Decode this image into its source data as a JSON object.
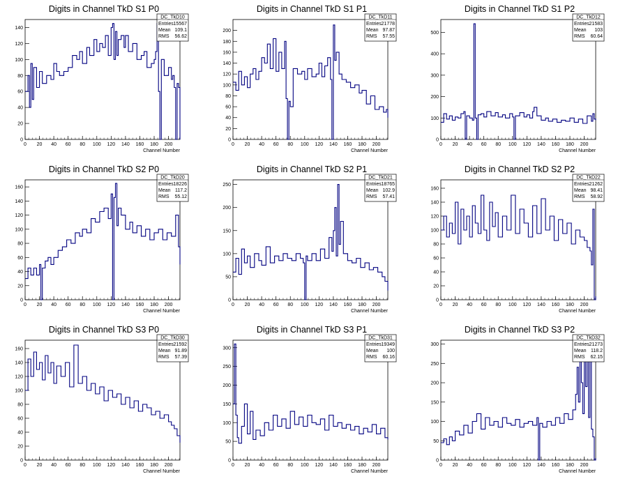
{
  "chart_data": [
    {
      "type": "line",
      "title": "Digits in Channel TkD S1 P0",
      "xlabel": "Channel Number",
      "ylabel": "",
      "xlim": [
        0,
        216
      ],
      "ylim": [
        0,
        150
      ],
      "xticks": [
        0,
        20,
        40,
        60,
        80,
        100,
        120,
        140,
        160,
        180,
        200
      ],
      "yticks": [
        0,
        20,
        40,
        60,
        80,
        100,
        120,
        140
      ],
      "stats": {
        "name": "DC_TkD10",
        "entries": "15567",
        "mean": "109.1",
        "rms": "56.62"
      },
      "x": [
        0,
        4,
        6,
        8,
        10,
        12,
        16,
        20,
        24,
        30,
        36,
        40,
        44,
        48,
        54,
        60,
        66,
        72,
        76,
        80,
        86,
        90,
        96,
        100,
        104,
        108,
        112,
        116,
        120,
        122,
        124,
        126,
        128,
        130,
        134,
        138,
        140,
        144,
        150,
        156,
        162,
        166,
        170,
        176,
        180,
        182,
        184,
        186,
        188,
        190,
        194,
        200,
        204,
        206,
        208,
        210,
        212,
        214,
        216
      ],
      "y": [
        60,
        80,
        40,
        95,
        50,
        90,
        65,
        85,
        70,
        80,
        75,
        95,
        85,
        80,
        85,
        90,
        105,
        100,
        110,
        95,
        115,
        105,
        125,
        110,
        120,
        115,
        130,
        105,
        140,
        145,
        100,
        135,
        105,
        125,
        130,
        115,
        130,
        110,
        120,
        100,
        105,
        110,
        90,
        95,
        100,
        110,
        145,
        60,
        0,
        100,
        80,
        90,
        75,
        80,
        65,
        0,
        70,
        65,
        0
      ]
    },
    {
      "type": "line",
      "title": "Digits in Channel TkD S1 P1",
      "xlabel": "Channel Number",
      "ylabel": "",
      "xlim": [
        0,
        216
      ],
      "ylim": [
        0,
        220
      ],
      "xticks": [
        0,
        20,
        40,
        60,
        80,
        100,
        120,
        140,
        160,
        180,
        200
      ],
      "yticks": [
        0,
        20,
        40,
        60,
        80,
        100,
        120,
        140,
        160,
        180,
        200
      ],
      "stats": {
        "name": "DC_TkD11",
        "entries": "21778",
        "mean": "97.87",
        "rms": "57.55"
      },
      "x": [
        0,
        4,
        8,
        12,
        16,
        20,
        24,
        28,
        32,
        36,
        40,
        44,
        48,
        52,
        56,
        60,
        64,
        68,
        72,
        74,
        76,
        78,
        80,
        84,
        90,
        96,
        100,
        104,
        110,
        116,
        120,
        124,
        128,
        132,
        136,
        138,
        140,
        142,
        144,
        148,
        152,
        158,
        164,
        170,
        176,
        180,
        186,
        192,
        198,
        204,
        210,
        214,
        216
      ],
      "y": [
        105,
        90,
        125,
        100,
        115,
        95,
        120,
        130,
        110,
        125,
        150,
        140,
        175,
        130,
        185,
        125,
        160,
        130,
        180,
        75,
        0,
        70,
        60,
        130,
        120,
        125,
        110,
        130,
        115,
        120,
        140,
        115,
        135,
        150,
        110,
        0,
        210,
        145,
        160,
        120,
        110,
        105,
        95,
        100,
        85,
        90,
        65,
        80,
        55,
        60,
        50,
        55,
        40
      ]
    },
    {
      "type": "line",
      "title": "Digits in Channel TkD S1 P2",
      "xlabel": "Channel Number",
      "ylabel": "",
      "xlim": [
        0,
        216
      ],
      "ylim": [
        0,
        560
      ],
      "xticks": [
        0,
        20,
        40,
        60,
        80,
        100,
        120,
        140,
        160,
        180,
        200
      ],
      "yticks": [
        0,
        100,
        200,
        300,
        400,
        500
      ],
      "stats": {
        "name": "DC_TkD12",
        "entries": "21583",
        "mean": "103",
        "rms": "60.64"
      },
      "x": [
        0,
        4,
        8,
        12,
        16,
        20,
        24,
        28,
        32,
        34,
        36,
        40,
        44,
        46,
        48,
        50,
        52,
        56,
        60,
        64,
        70,
        76,
        80,
        86,
        90,
        96,
        100,
        102,
        104,
        110,
        116,
        120,
        124,
        128,
        130,
        134,
        140,
        146,
        150,
        156,
        162,
        168,
        174,
        180,
        186,
        192,
        198,
        204,
        210,
        212,
        214,
        216
      ],
      "y": [
        80,
        120,
        95,
        110,
        90,
        105,
        100,
        120,
        130,
        0,
        110,
        100,
        90,
        540,
        100,
        0,
        115,
        120,
        105,
        130,
        110,
        125,
        105,
        115,
        100,
        120,
        105,
        0,
        110,
        125,
        105,
        115,
        100,
        130,
        150,
        110,
        90,
        100,
        85,
        95,
        80,
        90,
        85,
        100,
        80,
        95,
        75,
        110,
        85,
        120,
        95,
        90
      ]
    },
    {
      "type": "line",
      "title": "Digits in Channel TkD S2 P0",
      "xlabel": "Channel Number",
      "ylabel": "",
      "xlim": [
        0,
        216
      ],
      "ylim": [
        0,
        170
      ],
      "xticks": [
        0,
        20,
        40,
        60,
        80,
        100,
        120,
        140,
        160,
        180,
        200
      ],
      "yticks": [
        0,
        20,
        40,
        60,
        80,
        100,
        120,
        140,
        160
      ],
      "stats": {
        "name": "DC_TkD20",
        "entries": "18226",
        "mean": "117.2",
        "rms": "55.12"
      },
      "x": [
        0,
        4,
        8,
        12,
        16,
        20,
        22,
        24,
        28,
        32,
        36,
        40,
        46,
        52,
        58,
        64,
        70,
        76,
        80,
        86,
        92,
        98,
        104,
        110,
        116,
        120,
        122,
        124,
        126,
        128,
        130,
        134,
        140,
        146,
        150,
        156,
        162,
        168,
        174,
        180,
        186,
        192,
        198,
        204,
        210,
        214,
        216
      ],
      "y": [
        30,
        45,
        35,
        45,
        35,
        50,
        0,
        45,
        55,
        60,
        50,
        60,
        70,
        75,
        85,
        80,
        95,
        90,
        100,
        95,
        115,
        110,
        125,
        130,
        115,
        150,
        0,
        145,
        165,
        105,
        130,
        120,
        100,
        110,
        95,
        105,
        90,
        100,
        85,
        95,
        100,
        85,
        95,
        90,
        120,
        75,
        50
      ]
    },
    {
      "type": "line",
      "title": "Digits in Channel TkD S2 P1",
      "xlabel": "Channel Number",
      "ylabel": "",
      "xlim": [
        0,
        216
      ],
      "ylim": [
        0,
        260
      ],
      "xticks": [
        0,
        20,
        40,
        60,
        80,
        100,
        120,
        140,
        160,
        180,
        200
      ],
      "yticks": [
        0,
        50,
        100,
        150,
        200,
        250
      ],
      "stats": {
        "name": "DC_TkD21",
        "entries": "18765",
        "mean": "102.9",
        "rms": "57.41"
      },
      "x": [
        0,
        4,
        8,
        12,
        16,
        20,
        24,
        30,
        36,
        40,
        46,
        52,
        58,
        64,
        70,
        76,
        82,
        88,
        94,
        98,
        100,
        102,
        104,
        110,
        116,
        122,
        128,
        134,
        138,
        140,
        142,
        144,
        146,
        148,
        150,
        154,
        160,
        166,
        172,
        178,
        184,
        190,
        196,
        202,
        208,
        212,
        216
      ],
      "y": [
        60,
        90,
        55,
        110,
        80,
        95,
        70,
        100,
        85,
        75,
        115,
        80,
        95,
        85,
        100,
        90,
        85,
        100,
        90,
        80,
        0,
        95,
        85,
        100,
        85,
        110,
        90,
        135,
        105,
        150,
        200,
        95,
        250,
        120,
        170,
        100,
        85,
        80,
        90,
        70,
        80,
        65,
        70,
        60,
        50,
        40,
        20
      ]
    },
    {
      "type": "line",
      "title": "Digits in Channel TkD S2 P2",
      "xlabel": "Channel Number",
      "ylabel": "",
      "xlim": [
        0,
        216
      ],
      "ylim": [
        0,
        172
      ],
      "xticks": [
        0,
        20,
        40,
        60,
        80,
        100,
        120,
        140,
        160,
        180,
        200
      ],
      "yticks": [
        0,
        20,
        40,
        60,
        80,
        100,
        120,
        140,
        160
      ],
      "stats": {
        "name": "DC_TkD22",
        "entries": "21262",
        "mean": "98.41",
        "rms": "58.92"
      },
      "x": [
        0,
        4,
        8,
        12,
        16,
        20,
        24,
        28,
        32,
        36,
        40,
        44,
        48,
        52,
        56,
        60,
        64,
        68,
        72,
        76,
        80,
        86,
        92,
        98,
        104,
        110,
        116,
        122,
        128,
        134,
        140,
        146,
        152,
        158,
        164,
        170,
        176,
        182,
        188,
        194,
        200,
        204,
        208,
        210,
        212,
        214,
        216
      ],
      "y": [
        100,
        120,
        90,
        110,
        95,
        140,
        80,
        130,
        100,
        120,
        90,
        135,
        110,
        95,
        150,
        100,
        85,
        140,
        105,
        125,
        90,
        120,
        100,
        150,
        95,
        130,
        110,
        90,
        135,
        95,
        145,
        100,
        120,
        85,
        115,
        95,
        110,
        80,
        100,
        90,
        85,
        75,
        70,
        50,
        130,
        0,
        5
      ]
    },
    {
      "type": "line",
      "title": "Digits in Channel TkD S3 P0",
      "xlabel": "Channel Number",
      "ylabel": "",
      "xlim": [
        0,
        216
      ],
      "ylim": [
        0,
        172
      ],
      "xticks": [
        0,
        20,
        40,
        60,
        80,
        100,
        120,
        140,
        160,
        180,
        200
      ],
      "yticks": [
        0,
        20,
        40,
        60,
        80,
        100,
        120,
        140,
        160
      ],
      "stats": {
        "name": "DC_TkD30",
        "entries": "21592",
        "mean": "91.89",
        "rms": "57.39"
      },
      "x": [
        0,
        4,
        8,
        12,
        16,
        20,
        24,
        28,
        32,
        36,
        40,
        44,
        50,
        56,
        62,
        68,
        74,
        80,
        86,
        92,
        98,
        104,
        110,
        116,
        122,
        128,
        134,
        140,
        146,
        152,
        158,
        164,
        170,
        176,
        182,
        188,
        194,
        200,
        204,
        208,
        212,
        216
      ],
      "y": [
        100,
        145,
        120,
        155,
        130,
        140,
        115,
        150,
        125,
        140,
        110,
        135,
        120,
        140,
        105,
        165,
        110,
        120,
        100,
        110,
        95,
        105,
        85,
        100,
        90,
        95,
        80,
        90,
        75,
        85,
        70,
        80,
        75,
        65,
        70,
        60,
        65,
        55,
        50,
        45,
        35,
        25
      ]
    },
    {
      "type": "line",
      "title": "Digits in Channel TkD S3 P1",
      "xlabel": "Channel Number",
      "ylabel": "",
      "xlim": [
        0,
        216
      ],
      "ylim": [
        0,
        320
      ],
      "xticks": [
        0,
        20,
        40,
        60,
        80,
        100,
        120,
        140,
        160,
        180,
        200
      ],
      "yticks": [
        0,
        50,
        100,
        150,
        200,
        250,
        300
      ],
      "stats": {
        "name": "DC_TkD31",
        "entries": "19349",
        "mean": "100",
        "rms": "60.16"
      },
      "x": [
        0,
        2,
        4,
        6,
        8,
        12,
        16,
        20,
        24,
        28,
        32,
        38,
        44,
        50,
        56,
        62,
        68,
        74,
        80,
        86,
        92,
        98,
        104,
        110,
        116,
        122,
        128,
        134,
        140,
        146,
        152,
        158,
        164,
        170,
        176,
        182,
        188,
        194,
        200,
        206,
        212,
        216
      ],
      "y": [
        150,
        310,
        120,
        60,
        45,
        90,
        150,
        70,
        130,
        55,
        80,
        65,
        100,
        80,
        120,
        90,
        110,
        85,
        130,
        95,
        115,
        90,
        120,
        100,
        95,
        110,
        80,
        120,
        90,
        100,
        85,
        95,
        80,
        90,
        70,
        85,
        75,
        95,
        70,
        85,
        60,
        55
      ]
    },
    {
      "type": "line",
      "title": "Digits in Channel TkD S3 P2",
      "xlabel": "Channel Number",
      "ylabel": "",
      "xlim": [
        0,
        216
      ],
      "ylim": [
        0,
        310
      ],
      "xticks": [
        0,
        20,
        40,
        60,
        80,
        100,
        120,
        140,
        160,
        180,
        200
      ],
      "yticks": [
        0,
        50,
        100,
        150,
        200,
        250,
        300
      ],
      "stats": {
        "name": "DC_TkD32",
        "entries": "21273",
        "mean": "118.2",
        "rms": "62.15"
      },
      "x": [
        0,
        4,
        8,
        12,
        16,
        20,
        26,
        32,
        38,
        44,
        50,
        56,
        62,
        68,
        74,
        80,
        86,
        92,
        98,
        104,
        110,
        116,
        122,
        128,
        134,
        136,
        138,
        142,
        148,
        154,
        160,
        166,
        172,
        178,
        184,
        188,
        190,
        192,
        194,
        196,
        198,
        200,
        202,
        204,
        206,
        208,
        210,
        212,
        214,
        216
      ],
      "y": [
        45,
        55,
        40,
        60,
        50,
        75,
        65,
        90,
        70,
        100,
        120,
        80,
        110,
        90,
        100,
        85,
        110,
        95,
        90,
        105,
        85,
        95,
        100,
        90,
        110,
        0,
        95,
        85,
        100,
        90,
        110,
        95,
        120,
        105,
        130,
        170,
        240,
        150,
        280,
        200,
        120,
        260,
        190,
        300,
        110,
        270,
        80,
        60,
        0,
        5
      ]
    }
  ]
}
